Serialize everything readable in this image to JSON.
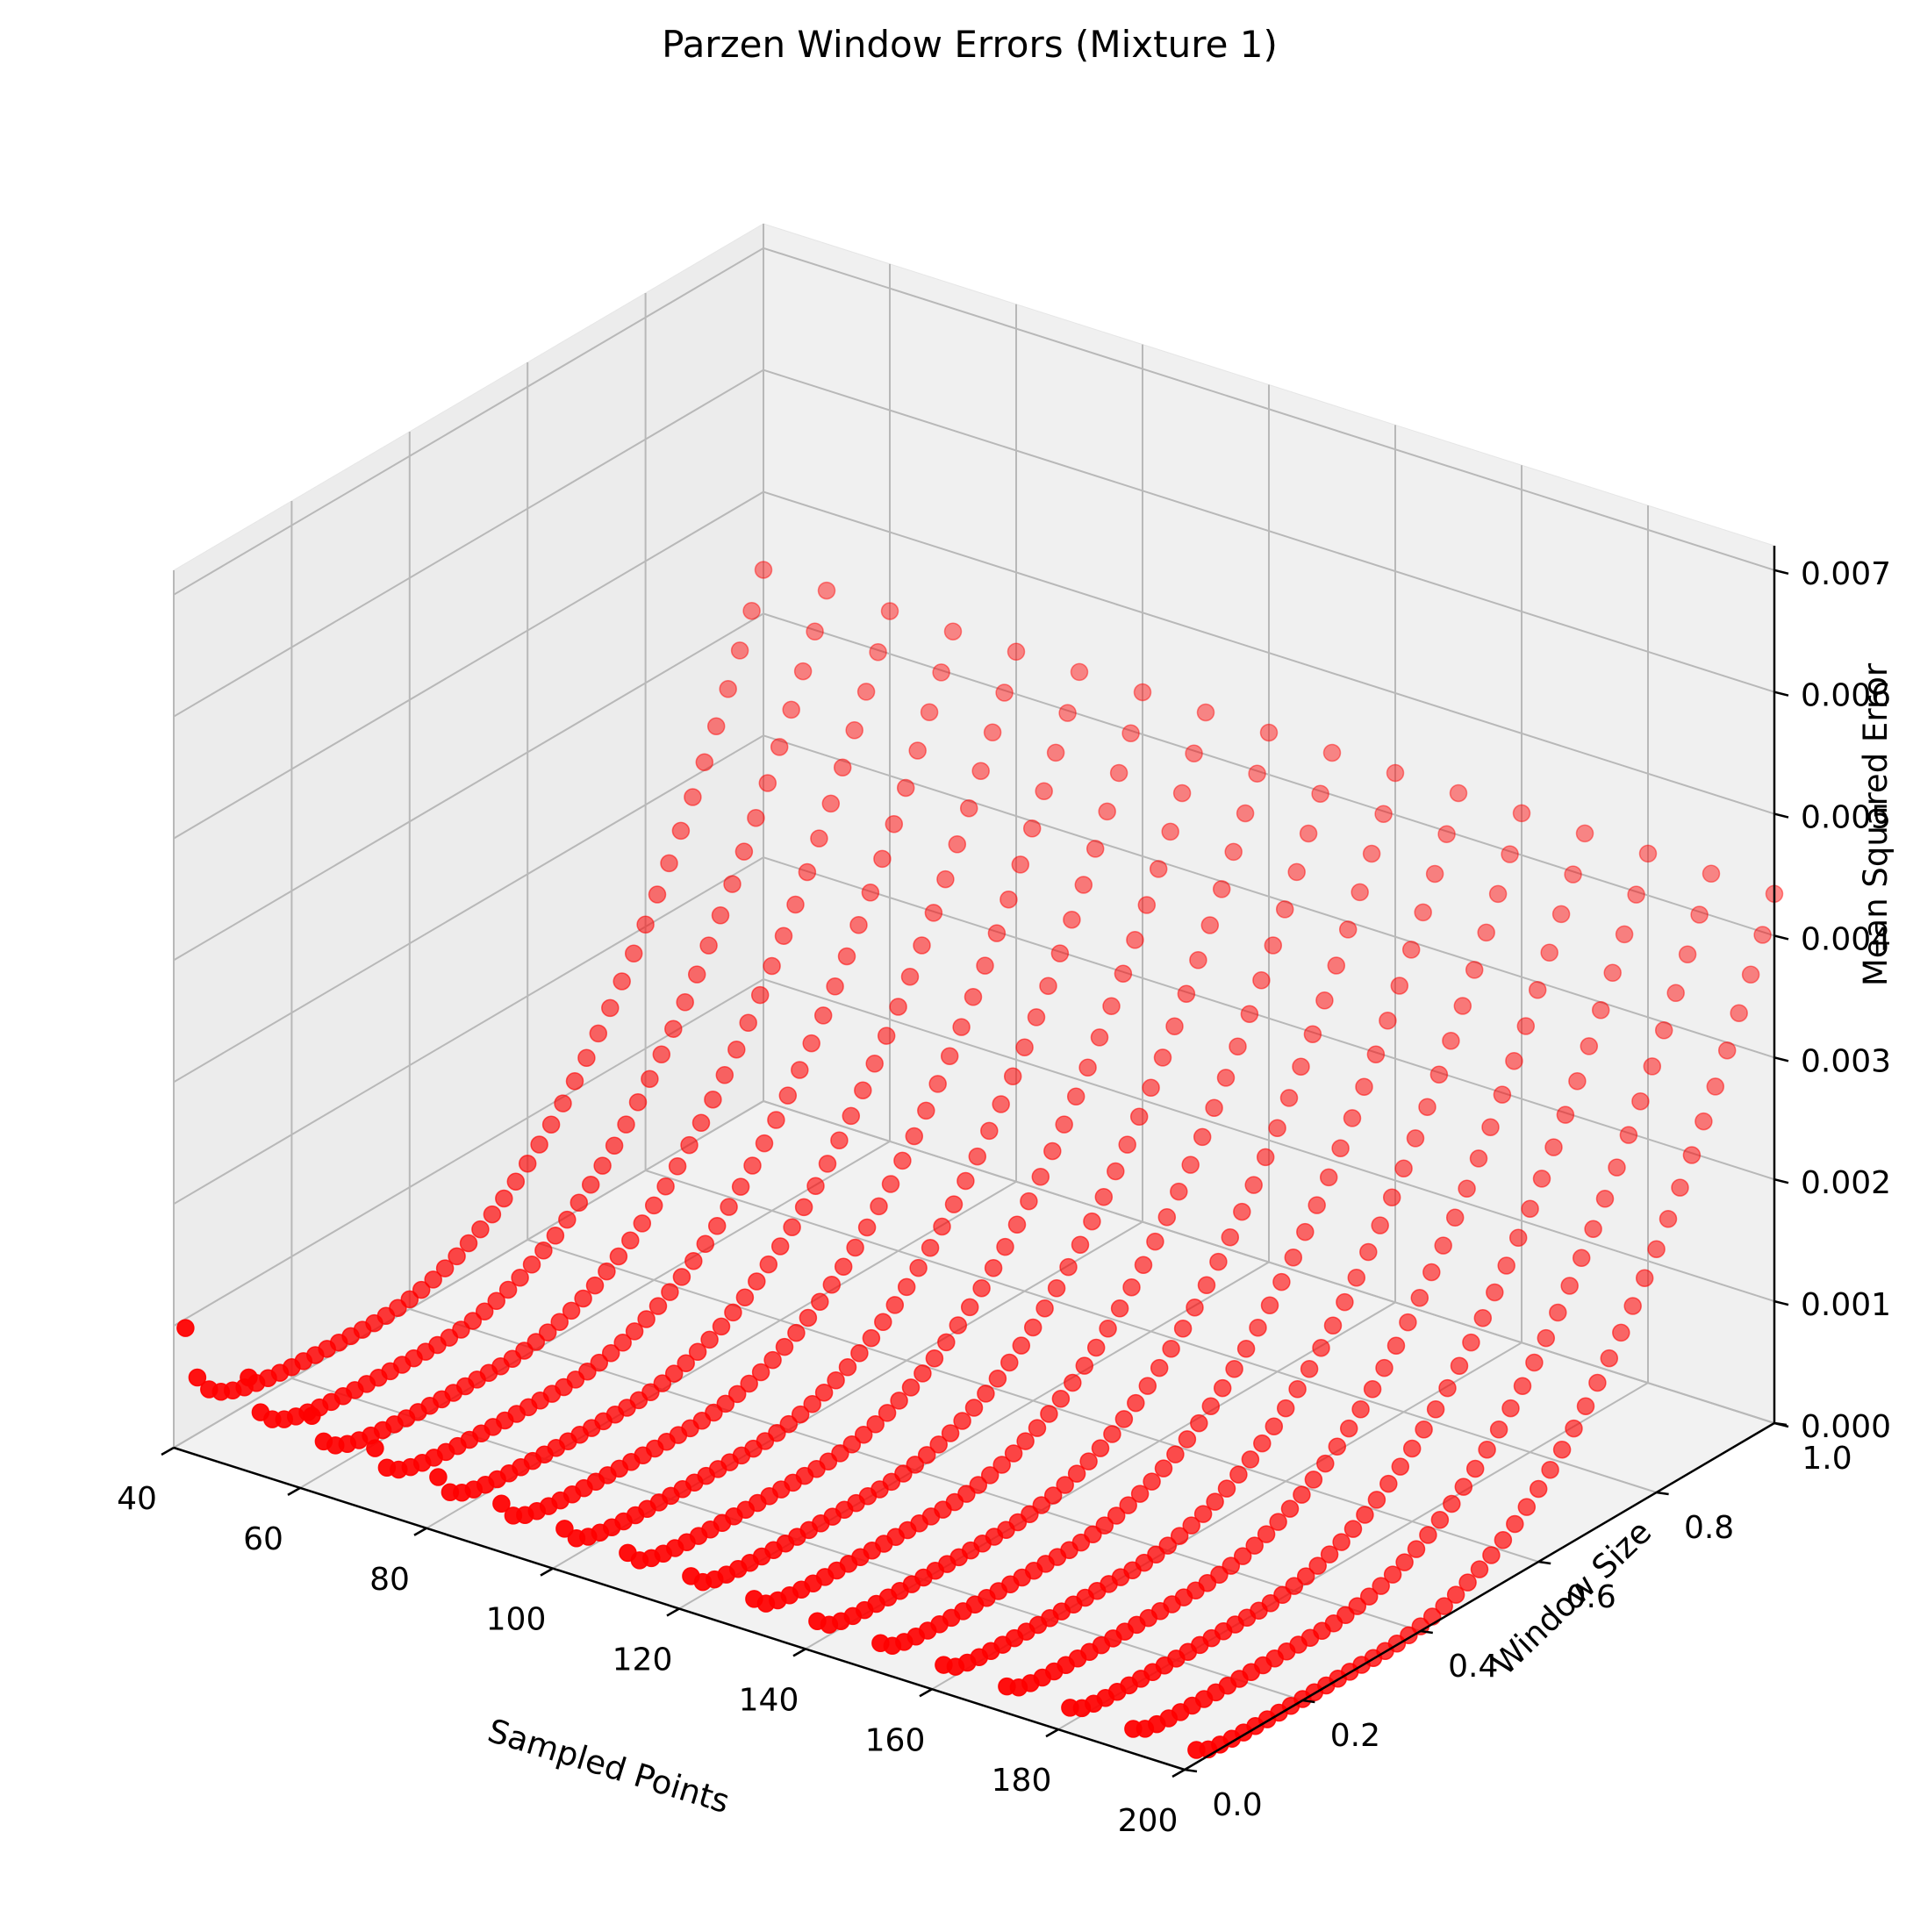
{
  "chart_data": {
    "type": "scatter3d",
    "title": "Parzen Window Errors (Mixture 1)",
    "xlabel": "Sampled Points",
    "ylabel": "Window Size",
    "zlabel": "Mean Squared Error",
    "xlim": [
      40,
      200
    ],
    "ylim": [
      0.0,
      1.0
    ],
    "zlim": [
      0.0,
      0.0072
    ],
    "x_ticks": [
      "40",
      "60",
      "80",
      "100",
      "120",
      "140",
      "160",
      "180",
      "200"
    ],
    "y_ticks": [
      "0.0",
      "0.2",
      "0.4",
      "0.6",
      "0.8",
      "1.0"
    ],
    "z_ticks": [
      "0.000",
      "0.001",
      "0.002",
      "0.003",
      "0.004",
      "0.005",
      "0.006",
      "0.007"
    ],
    "grid": true,
    "marker_color": "#ff0000",
    "sampled_points": [
      40,
      50,
      60,
      70,
      80,
      90,
      100,
      110,
      120,
      130,
      140,
      150,
      160,
      170,
      180,
      190,
      200
    ],
    "window_sizes": [
      0.02,
      0.04,
      0.06,
      0.08,
      0.1,
      0.12,
      0.14,
      0.16,
      0.18,
      0.2,
      0.22,
      0.24,
      0.26,
      0.28,
      0.3,
      0.32,
      0.34,
      0.36,
      0.38,
      0.4,
      0.42,
      0.44,
      0.46,
      0.48,
      0.5,
      0.52,
      0.54,
      0.56,
      0.58,
      0.6,
      0.62,
      0.64,
      0.66,
      0.68,
      0.7,
      0.72,
      0.74,
      0.76,
      0.78,
      0.8,
      0.82,
      0.84,
      0.86,
      0.88,
      0.9,
      0.92,
      0.94,
      0.96,
      0.98,
      1.0
    ],
    "series": [
      {
        "sampled_points": 40,
        "window_sizes": [
          0.02,
          0.04,
          0.06,
          0.08,
          0.1,
          0.14,
          0.2,
          0.3,
          0.5,
          0.7,
          0.9,
          1.0
        ],
        "mse": [
          0.0059,
          0.0052,
          0.0045,
          0.0038,
          0.003,
          0.0022,
          0.0014,
          0.0008,
          0.0006,
          0.0009,
          0.0014,
          0.0017
        ]
      },
      {
        "sampled_points": 200,
        "window_sizes": [
          0.1,
          0.2,
          0.3,
          0.4,
          0.5,
          0.6,
          0.7,
          0.8,
          0.9,
          1.0
        ],
        "mse": [
          0.00035,
          8e-05,
          3e-05,
          4e-05,
          0.0001,
          0.00028,
          0.00055,
          0.0008,
          0.001,
          0.00105
        ]
      }
    ],
    "note": "Red scatter of MSE vs. number of sampled points (40-200) and Parzen window size (0-1); error is largest at small windows with few samples and minimal near window size 0.3-0.4."
  }
}
